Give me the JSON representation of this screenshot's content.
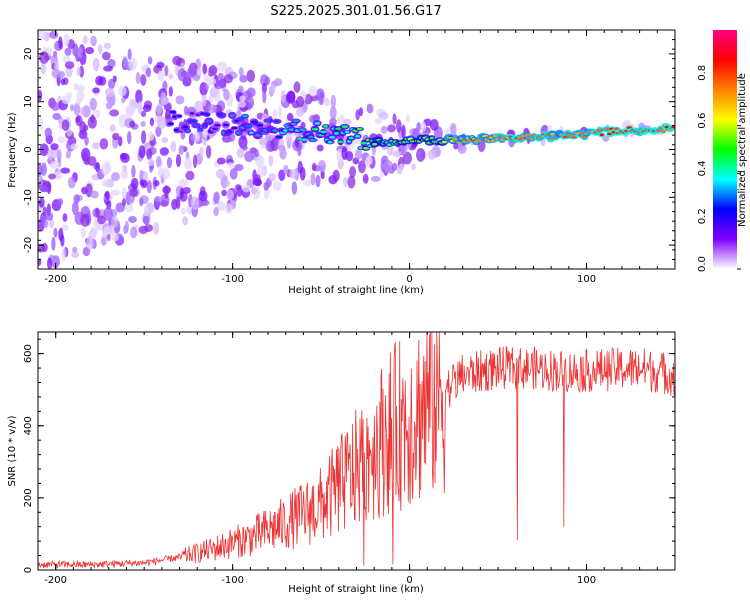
{
  "title": "S225.2025.301.01.56.G17",
  "chart_data": [
    {
      "type": "heatmap",
      "title": "S225.2025.301.01.56.G17",
      "xlabel": "Height of straight line (km)",
      "ylabel": "Frequency (Hz)",
      "xlim": [
        -210,
        150
      ],
      "ylim": [
        -25,
        25
      ],
      "xticks": [
        -200,
        -100,
        0,
        100
      ],
      "yticks": [
        -20,
        -10,
        0,
        10,
        20
      ],
      "colorbar": {
        "label": "Normalized spectral amplitude",
        "range": [
          0,
          1
        ],
        "ticks": [
          "0.0",
          "0.2",
          "0.4",
          "0.6",
          "0.8"
        ],
        "colors": [
          "#ffffff",
          "#8000ff",
          "#0000ff",
          "#00ffff",
          "#00ff00",
          "#ffff00",
          "#ff8000",
          "#ff0000",
          "#ff0080"
        ]
      },
      "ridge": {
        "x": [
          -130,
          -110,
          -90,
          -70,
          -50,
          -30,
          -20,
          -10,
          0,
          10,
          30,
          60,
          90,
          120,
          150
        ],
        "frequency": [
          6,
          5.5,
          5,
          4.5,
          3.5,
          2.5,
          1.5,
          1.5,
          2,
          2,
          2,
          2.5,
          3,
          4,
          4.5
        ],
        "amplitude": [
          0.25,
          0.25,
          0.3,
          0.35,
          0.4,
          0.45,
          0.5,
          0.5,
          0.55,
          0.55,
          0.7,
          0.8,
          0.75,
          0.85,
          0.8
        ]
      }
    },
    {
      "type": "line",
      "xlabel": "Height of straight line (km)",
      "ylabel": "SNR (10 * v/v)",
      "xlim": [
        -210,
        150
      ],
      "ylim": [
        0,
        660
      ],
      "xticks": [
        -200,
        -100,
        0,
        100
      ],
      "yticks": [
        0,
        200,
        400,
        600
      ],
      "series": [
        {
          "name": "SNR",
          "color": "#ee3333",
          "x": [
            -210,
            -180,
            -150,
            -130,
            -110,
            -90,
            -70,
            -50,
            -40,
            -30,
            -20,
            -10,
            0,
            10,
            20,
            30,
            50,
            70,
            90,
            110,
            130,
            150
          ],
          "values": [
            15,
            15,
            20,
            35,
            60,
            90,
            130,
            180,
            230,
            280,
            340,
            390,
            420,
            460,
            500,
            540,
            560,
            560,
            550,
            555,
            560,
            540
          ]
        }
      ]
    }
  ]
}
